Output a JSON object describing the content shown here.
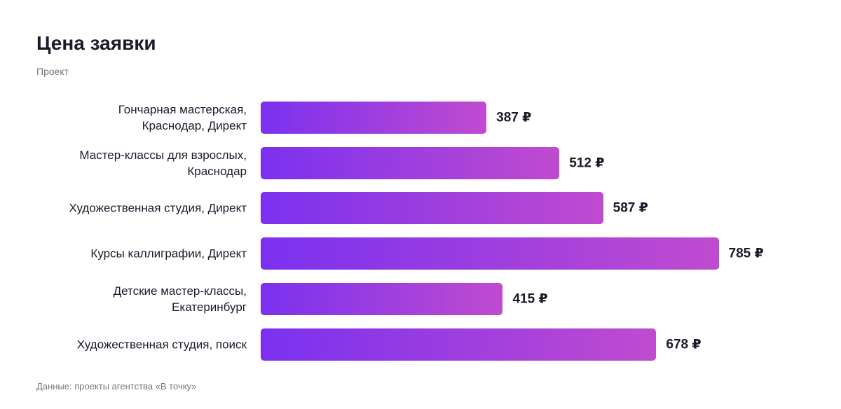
{
  "chart_data": {
    "type": "bar",
    "orientation": "horizontal",
    "title": "Цена заявки",
    "y_label": "Проект",
    "source": "Данные: проекты агентства «В точку»",
    "categories": [
      "Гончарная мастерская,\nКраснодар, Директ",
      "Мастер-классы для взрослых,\nКраснодар",
      "Художественная студия, Директ",
      "Курсы каллиграфии, Директ",
      "Детские мастер-классы,\nЕкатеринбург",
      "Художественная студия, поиск"
    ],
    "values": [
      387,
      512,
      587,
      785,
      415,
      678
    ],
    "value_labels": [
      "387 ₽",
      "512 ₽",
      "587 ₽",
      "785 ₽",
      "415 ₽",
      "678 ₽"
    ],
    "color": "#7a31ef",
    "color_end": "#c04bcf",
    "xlim": [
      0,
      800
    ]
  }
}
